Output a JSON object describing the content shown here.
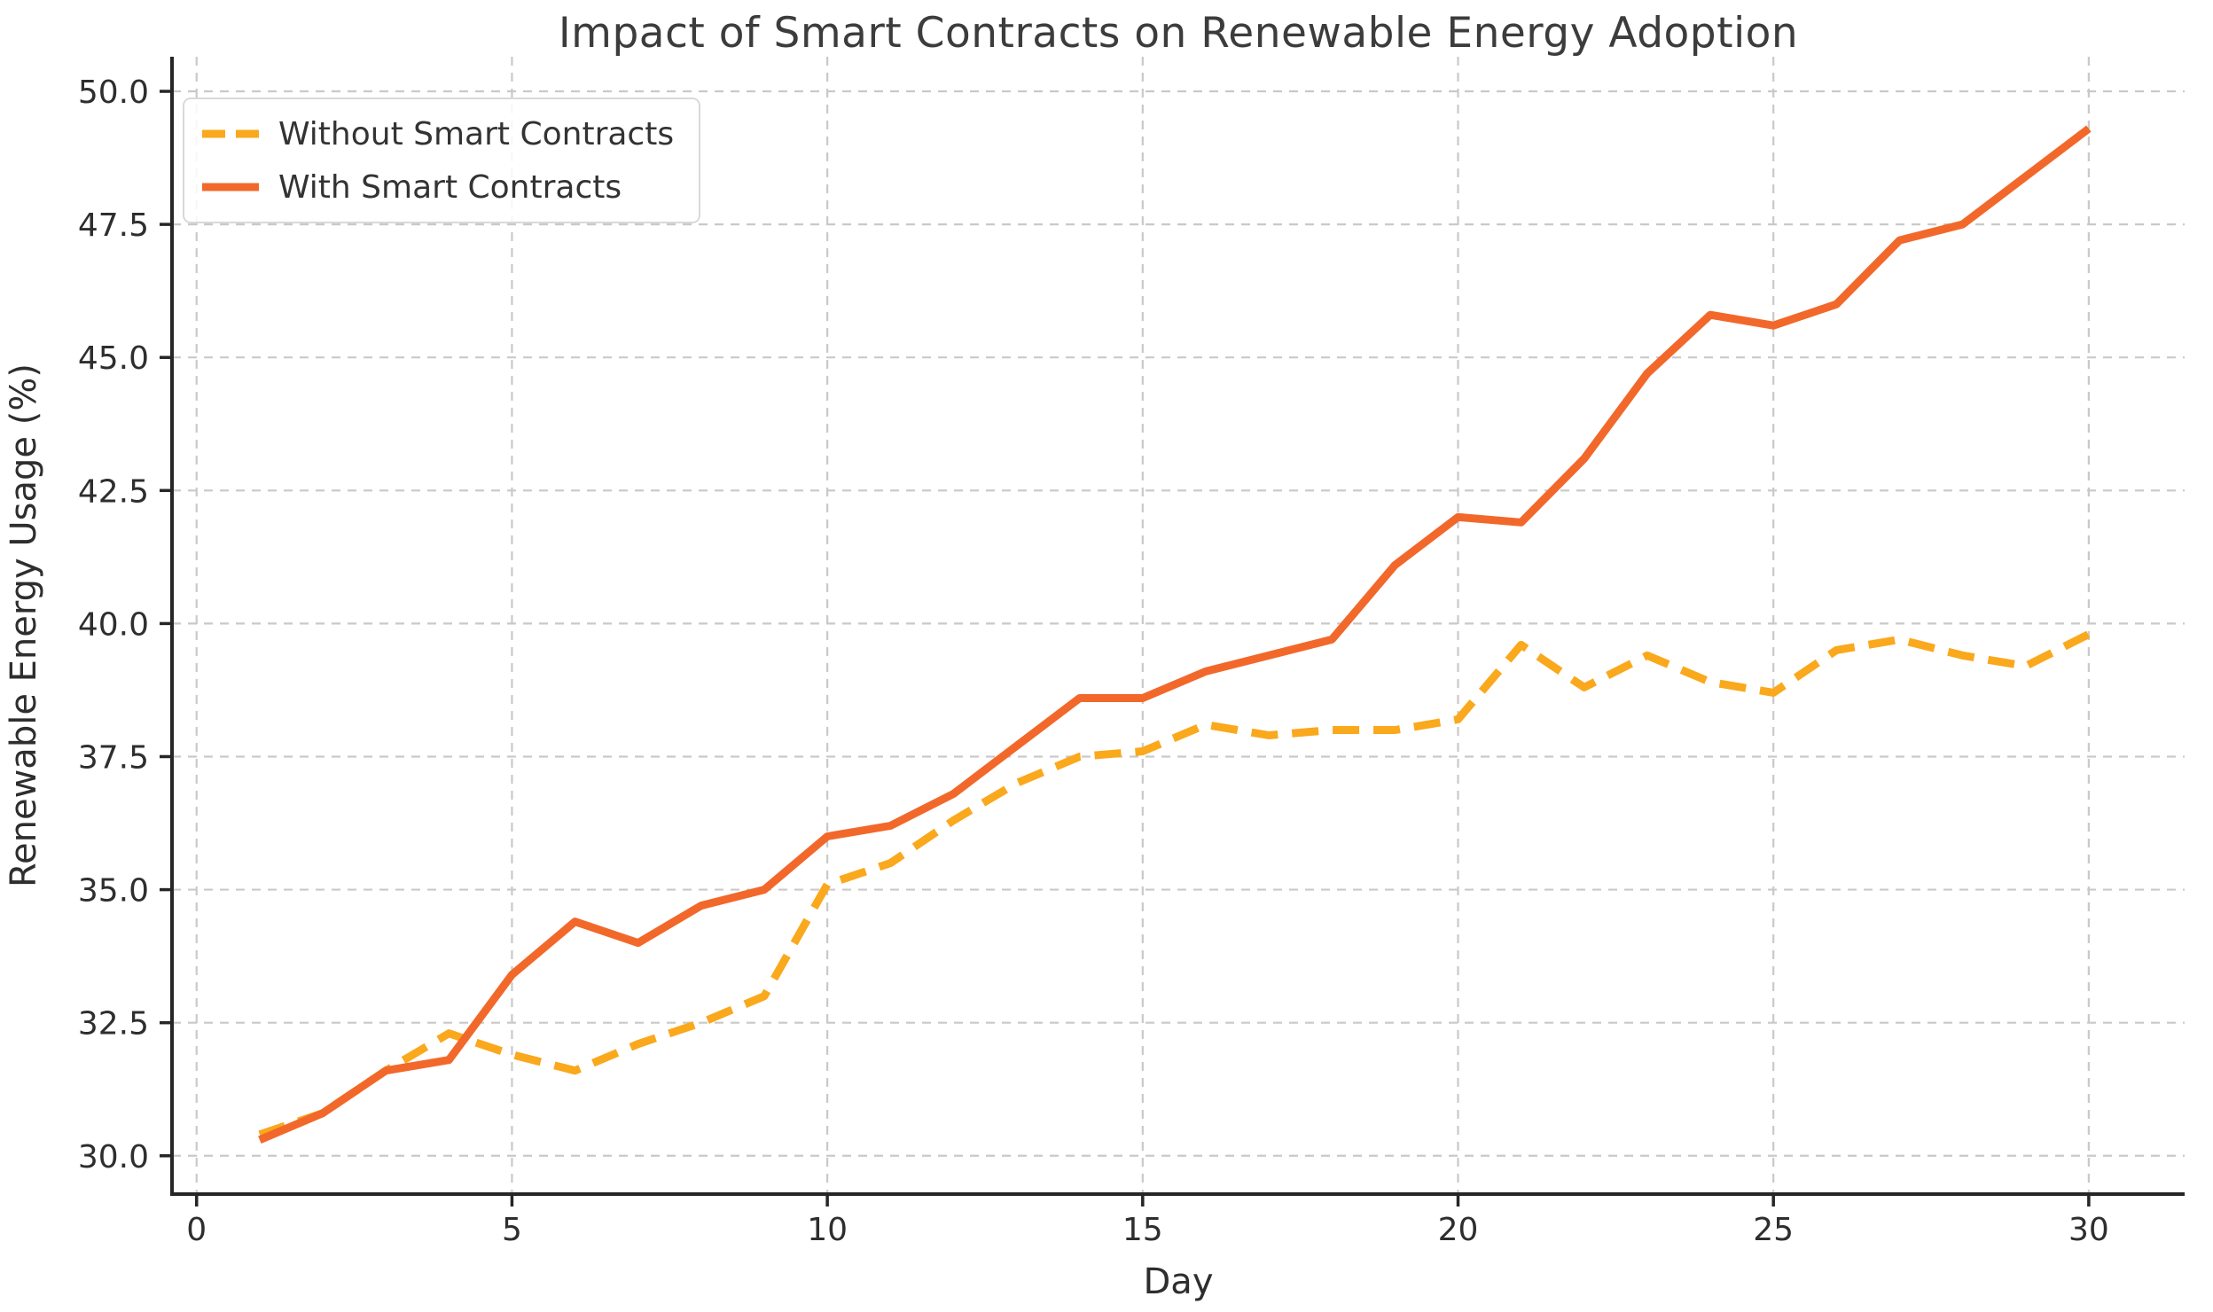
{
  "figure": {
    "title": "Impact of Smart Contracts on Renewable Energy Adoption"
  },
  "chart_data": {
    "type": "line",
    "title": "Impact of Smart Contracts on Renewable Energy Adoption",
    "xlabel": "Day",
    "ylabel": "Renewable Energy Usage (%)",
    "x": [
      1,
      2,
      3,
      4,
      5,
      6,
      7,
      8,
      9,
      10,
      11,
      12,
      13,
      14,
      15,
      16,
      17,
      18,
      19,
      20,
      21,
      22,
      23,
      24,
      25,
      26,
      27,
      28,
      29,
      30
    ],
    "series": [
      {
        "name": "Without Smart Contracts",
        "style": "dashed",
        "color": "#FAA81C",
        "values": [
          30.4,
          30.8,
          31.6,
          32.3,
          31.9,
          31.6,
          32.1,
          32.5,
          33.0,
          35.1,
          35.5,
          36.3,
          37.0,
          37.5,
          37.6,
          38.1,
          37.9,
          38.0,
          38.0,
          38.2,
          39.6,
          38.8,
          39.4,
          38.9,
          38.7,
          39.5,
          39.7,
          39.4,
          39.2,
          39.8
        ]
      },
      {
        "name": "With Smart Contracts",
        "style": "solid",
        "color": "#F2682B",
        "values": [
          30.3,
          30.8,
          31.6,
          31.8,
          33.4,
          34.4,
          34.0,
          34.7,
          35.0,
          36.0,
          36.2,
          36.8,
          37.7,
          38.6,
          38.6,
          39.1,
          39.4,
          39.7,
          41.1,
          42.0,
          41.9,
          43.1,
          44.7,
          45.8,
          45.6,
          46.0,
          47.2,
          47.5,
          48.4,
          49.3
        ]
      }
    ],
    "xticks": [
      0,
      5,
      10,
      15,
      20,
      25,
      30
    ],
    "xtick_labels": [
      "0",
      "5",
      "10",
      "15",
      "20",
      "25",
      "30"
    ],
    "yticks": [
      30,
      32.5,
      35,
      37.5,
      40,
      42.5,
      45,
      47.5,
      50
    ],
    "ytick_labels": [
      "30.0",
      "32.5",
      "35.0",
      "37.5",
      "40.0",
      "42.5",
      "45.0",
      "47.5",
      "50.0"
    ],
    "xlim": [
      -0.39,
      31.52
    ],
    "ylim": [
      29.28,
      50.65
    ],
    "grid": true,
    "grid_color": "#c9c9c9",
    "axis_color": "#262626",
    "tick_label_color": "#2e2e2e",
    "legend_position": "upper left"
  }
}
